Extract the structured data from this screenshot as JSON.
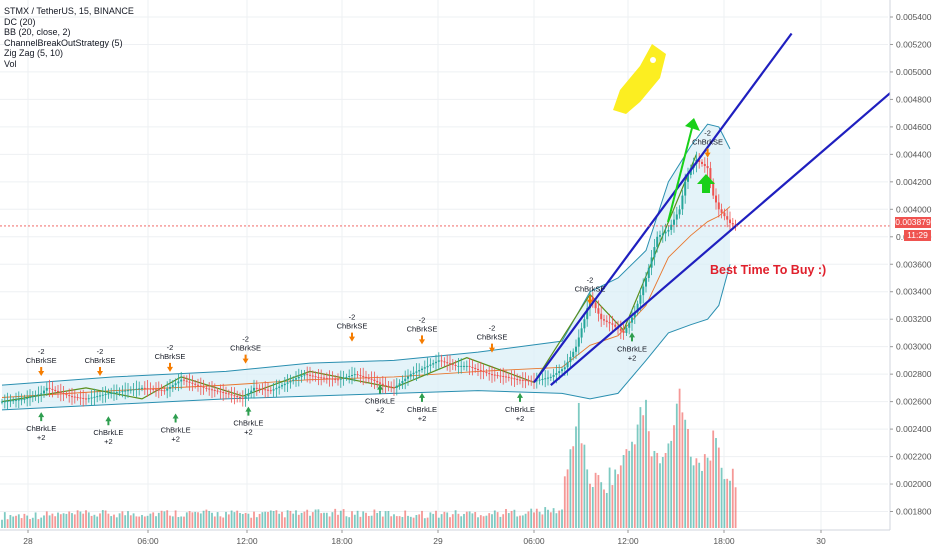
{
  "legend": {
    "symbol": "STMX / TetherUS, 15, BINANCE",
    "dc": "DC (20)",
    "bb": "BB (20, close, 2)",
    "strategy": "ChannelBreakOutStrategy (5)",
    "zigzag": "Zig Zag (5, 10)",
    "vol": "Vol"
  },
  "price_badge": "0.003879",
  "time_badge": "11:29",
  "callout": "Best Time To Buy :)",
  "colors": {
    "up": "#26a69a",
    "down": "#ef5350",
    "channel": "#1f1fbf",
    "arrow": "#19d019",
    "rocket": "#fcee21",
    "band_fill": "#d9eef7",
    "band_line": "#2a8fb0",
    "signal_buy": "#2e9e4f",
    "signal_sell": "#f57c00"
  },
  "chart_data": {
    "type": "candlestick",
    "symbol": "STMX / TetherUS",
    "interval": "15",
    "exchange": "BINANCE",
    "ylim": [
      0.00168,
      0.00548
    ],
    "y_ticks": [
      "0.005400",
      "0.005200",
      "0.005000",
      "0.004800",
      "0.004600",
      "0.004400",
      "0.004200",
      "0.004000",
      "0.003800",
      "0.003600",
      "0.003400",
      "0.003200",
      "0.003000",
      "0.002800",
      "0.002600",
      "0.002400",
      "0.002200",
      "0.002000",
      "0.001800"
    ],
    "x_ticks": [
      "28",
      "06:00",
      "12:00",
      "18:00",
      "29",
      "06:00",
      "12:00",
      "18:00",
      "30"
    ],
    "last_price": 0.003879,
    "price_path": [
      [
        0,
        0.0026
      ],
      [
        8,
        0.00262
      ],
      [
        14,
        0.00266
      ],
      [
        16,
        0.0027
      ],
      [
        24,
        0.00264
      ],
      [
        30,
        0.00262
      ],
      [
        38,
        0.00266
      ],
      [
        50,
        0.0027
      ],
      [
        58,
        0.00268
      ],
      [
        64,
        0.00276
      ],
      [
        72,
        0.0027
      ],
      [
        80,
        0.00266
      ],
      [
        86,
        0.00262
      ],
      [
        90,
        0.0027
      ],
      [
        96,
        0.00268
      ],
      [
        104,
        0.00276
      ],
      [
        108,
        0.0028
      ],
      [
        112,
        0.00278
      ],
      [
        120,
        0.00276
      ],
      [
        126,
        0.0028
      ],
      [
        132,
        0.00276
      ],
      [
        136,
        0.00272
      ],
      [
        140,
        0.0027
      ],
      [
        146,
        0.0028
      ],
      [
        150,
        0.00284
      ],
      [
        156,
        0.0029
      ],
      [
        162,
        0.00286
      ],
      [
        166,
        0.00286
      ],
      [
        174,
        0.0028
      ],
      [
        180,
        0.00278
      ],
      [
        184,
        0.00276
      ],
      [
        190,
        0.00275
      ],
      [
        196,
        0.00278
      ],
      [
        201,
        0.00285
      ],
      [
        205,
        0.003
      ],
      [
        208,
        0.0032
      ],
      [
        210,
        0.00336
      ],
      [
        214,
        0.0032
      ],
      [
        218,
        0.00316
      ],
      [
        222,
        0.0031
      ],
      [
        226,
        0.00325
      ],
      [
        230,
        0.0035
      ],
      [
        234,
        0.0038
      ],
      [
        238,
        0.00385
      ],
      [
        242,
        0.004
      ],
      [
        244,
        0.0042
      ],
      [
        246,
        0.0043
      ],
      [
        248,
        0.00436
      ],
      [
        252,
        0.0043
      ],
      [
        254,
        0.0041
      ],
      [
        256,
        0.004
      ],
      [
        258,
        0.00395
      ],
      [
        260,
        0.0039
      ],
      [
        262,
        0.003879
      ]
    ],
    "volume_path": [
      [
        0,
        0.00174
      ],
      [
        30,
        0.00175
      ],
      [
        60,
        0.00176
      ],
      [
        90,
        0.00175
      ],
      [
        120,
        0.00176
      ],
      [
        150,
        0.00175
      ],
      [
        180,
        0.00176
      ],
      [
        200,
        0.00178
      ],
      [
        204,
        0.00225
      ],
      [
        206,
        0.00245
      ],
      [
        208,
        0.0021
      ],
      [
        210,
        0.00195
      ],
      [
        214,
        0.0019
      ],
      [
        220,
        0.002
      ],
      [
        224,
        0.00215
      ],
      [
        228,
        0.0024
      ],
      [
        230,
        0.00245
      ],
      [
        232,
        0.00215
      ],
      [
        236,
        0.00205
      ],
      [
        240,
        0.0023
      ],
      [
        242,
        0.0026
      ],
      [
        244,
        0.0024
      ],
      [
        246,
        0.00215
      ],
      [
        250,
        0.00205
      ],
      [
        254,
        0.0022
      ],
      [
        258,
        0.002
      ],
      [
        262,
        0.0019
      ]
    ],
    "bb_band": {
      "upper": [
        [
          0,
          0.00272
        ],
        [
          40,
          0.00278
        ],
        [
          80,
          0.00282
        ],
        [
          110,
          0.00288
        ],
        [
          140,
          0.0029
        ],
        [
          170,
          0.00296
        ],
        [
          200,
          0.00304
        ],
        [
          210,
          0.0034
        ],
        [
          220,
          0.0035
        ],
        [
          230,
          0.0037
        ],
        [
          238,
          0.0042
        ],
        [
          246,
          0.00446
        ],
        [
          252,
          0.00462
        ],
        [
          256,
          0.0046
        ],
        [
          260,
          0.00444
        ]
      ],
      "lower": [
        [
          0,
          0.00254
        ],
        [
          40,
          0.00258
        ],
        [
          80,
          0.00262
        ],
        [
          110,
          0.00264
        ],
        [
          140,
          0.00266
        ],
        [
          170,
          0.00268
        ],
        [
          200,
          0.00266
        ],
        [
          210,
          0.00262
        ],
        [
          220,
          0.00266
        ],
        [
          230,
          0.0029
        ],
        [
          238,
          0.0031
        ],
        [
          246,
          0.00316
        ],
        [
          252,
          0.0032
        ],
        [
          256,
          0.0033
        ],
        [
          260,
          0.0036
        ]
      ]
    },
    "trend_lines": [
      {
        "name": "channel-upper",
        "points": [
          [
            190,
            0.00274
          ],
          [
            282,
            0.00528
          ]
        ]
      },
      {
        "name": "channel-lower",
        "points": [
          [
            196,
            0.00272
          ],
          [
            318,
            0.00486
          ]
        ]
      }
    ],
    "signals": [
      {
        "kind": "sell",
        "label": "ChBrkSE",
        "text": "-2",
        "x": 14,
        "y": 0.00283
      },
      {
        "kind": "buy",
        "label": "ChBrkLE",
        "text": "+2",
        "x": 14,
        "y": 0.00248
      },
      {
        "kind": "sell",
        "label": "ChBrkSE",
        "text": "-2",
        "x": 35,
        "y": 0.00283
      },
      {
        "kind": "buy",
        "label": "ChBrkLE",
        "text": "+2",
        "x": 38,
        "y": 0.00245
      },
      {
        "kind": "sell",
        "label": "ChBrkSE",
        "text": "-2",
        "x": 60,
        "y": 0.00286
      },
      {
        "kind": "buy",
        "label": "ChBrkLE",
        "text": "+2",
        "x": 62,
        "y": 0.00247
      },
      {
        "kind": "sell",
        "label": "ChBrkSE",
        "text": "-2",
        "x": 87,
        "y": 0.00292
      },
      {
        "kind": "buy",
        "label": "ChBrkLE",
        "text": "+2",
        "x": 88,
        "y": 0.00252
      },
      {
        "kind": "sell",
        "label": "ChBrkSE",
        "text": "-2",
        "x": 125,
        "y": 0.00308
      },
      {
        "kind": "buy",
        "label": "ChBrkLE",
        "text": "+2",
        "x": 135,
        "y": 0.00268
      },
      {
        "kind": "sell",
        "label": "ChBrkSE",
        "text": "-2",
        "x": 150,
        "y": 0.00306
      },
      {
        "kind": "buy",
        "label": "ChBrkLE",
        "text": "+2",
        "x": 150,
        "y": 0.00262
      },
      {
        "kind": "sell",
        "label": "ChBrkSE",
        "text": "-2",
        "x": 175,
        "y": 0.003
      },
      {
        "kind": "buy",
        "label": "ChBrkLE",
        "text": "+2",
        "x": 185,
        "y": 0.00262
      },
      {
        "kind": "sell",
        "label": "ChBrkSE",
        "text": "-2",
        "x": 210,
        "y": 0.00335
      },
      {
        "kind": "buy",
        "label": "ChBrkLE",
        "text": "+2",
        "x": 225,
        "y": 0.00306
      },
      {
        "kind": "sell",
        "label": "ChBrkSE",
        "text": "-2",
        "x": 252,
        "y": 0.00442
      }
    ]
  }
}
